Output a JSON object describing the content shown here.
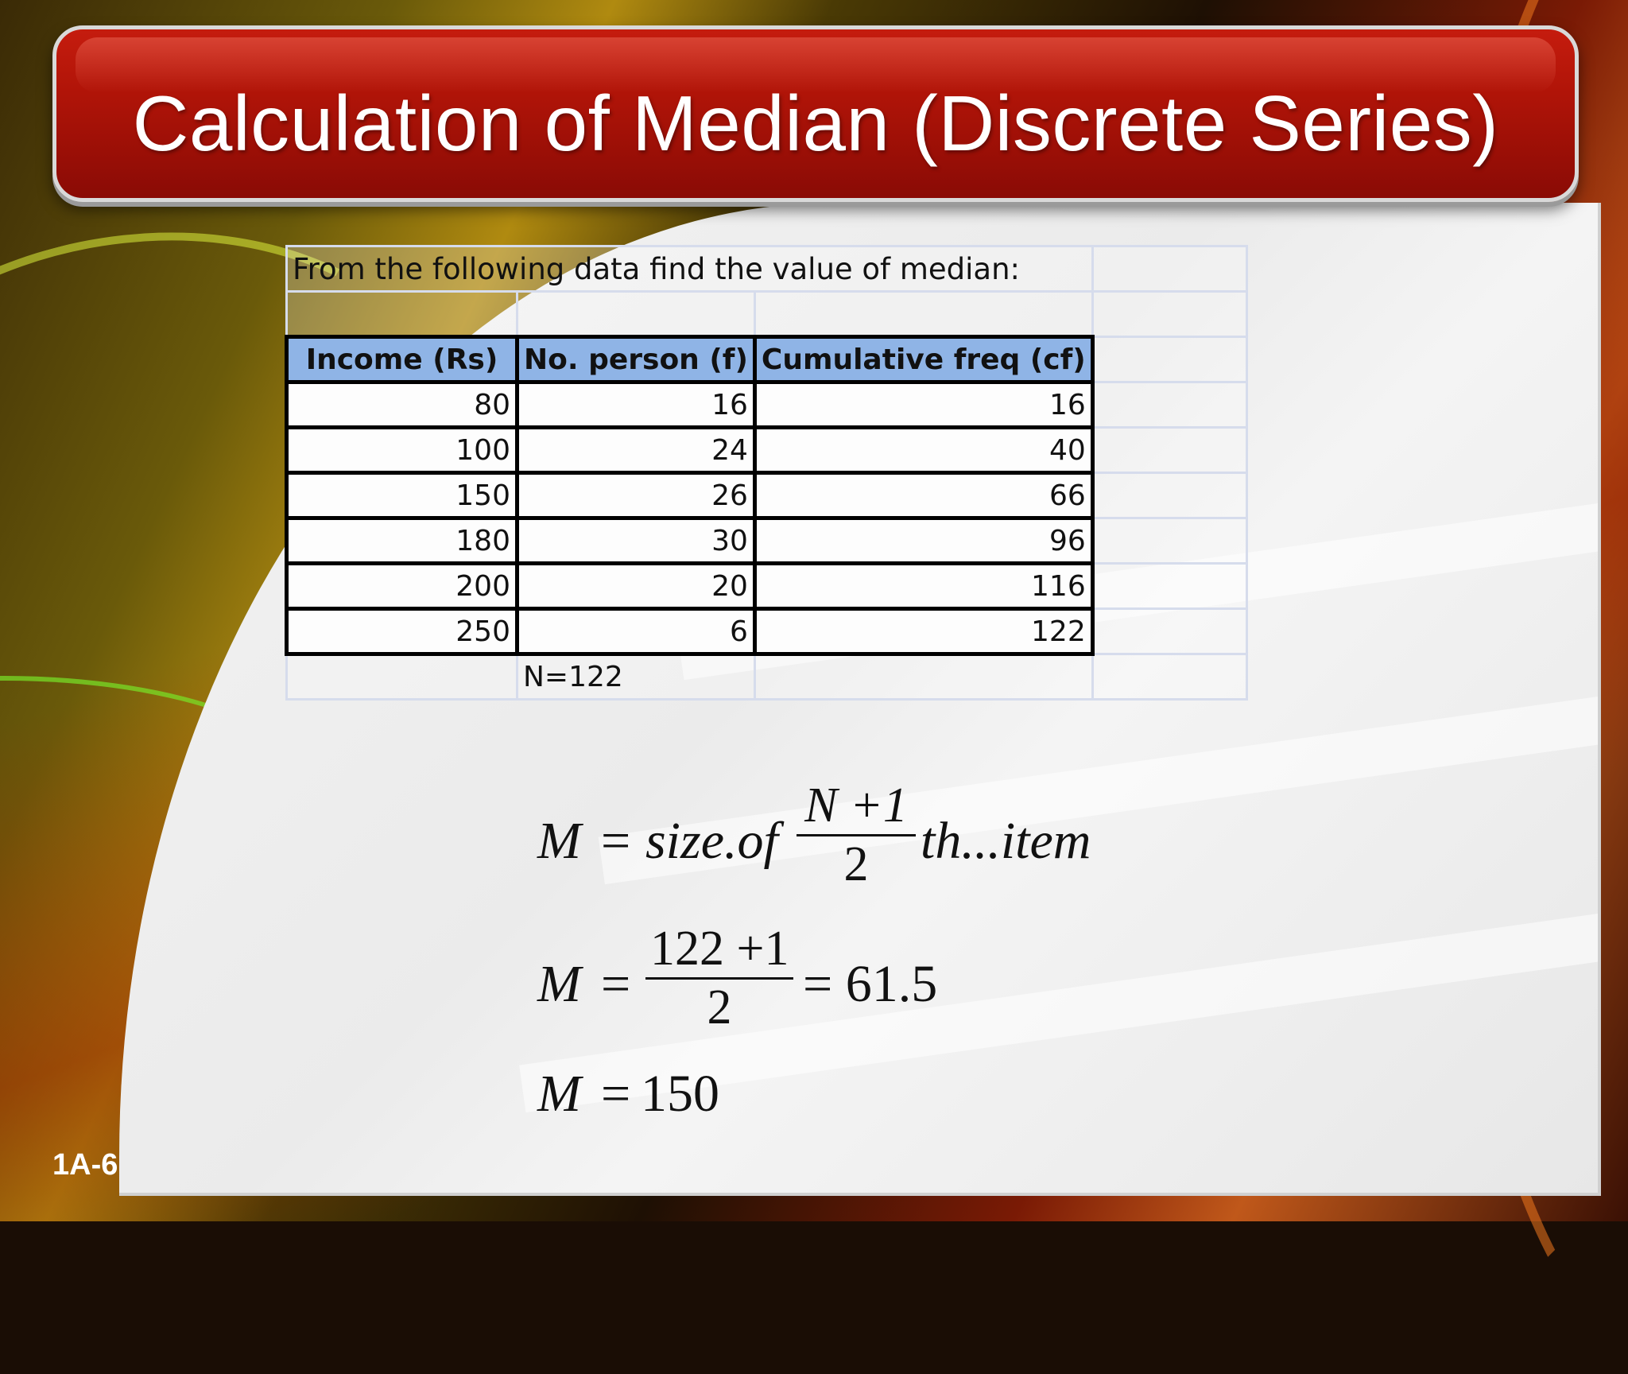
{
  "slide": {
    "title": "Calculation of Median (Discrete Series)",
    "slide_number": "1A-6"
  },
  "table": {
    "intro": "From the following data find the value of median:",
    "headers": [
      "Income (Rs)",
      "No. person (f)",
      "Cumulative freq (cf)"
    ],
    "rows": [
      [
        "80",
        "16",
        "16"
      ],
      [
        "100",
        "24",
        "40"
      ],
      [
        "150",
        "26",
        "66"
      ],
      [
        "180",
        "30",
        "96"
      ],
      [
        "200",
        "20",
        "116"
      ],
      [
        "250",
        "6",
        "122"
      ]
    ],
    "total": "N=122"
  },
  "formulas": {
    "f1": {
      "lhs": "M",
      "eq": "=",
      "text": "size.of",
      "num": "N +1",
      "den": "2",
      "suffix": "th...item"
    },
    "f2": {
      "lhs": "M",
      "eq": "=",
      "num": "122 +1",
      "den": "2",
      "rhs": "= 61.5"
    },
    "f3": {
      "lhs": "M",
      "eq": "=",
      "rhs": "150"
    }
  },
  "colors": {
    "banner": "#b01408",
    "header_fill": "#8fb4e6"
  }
}
